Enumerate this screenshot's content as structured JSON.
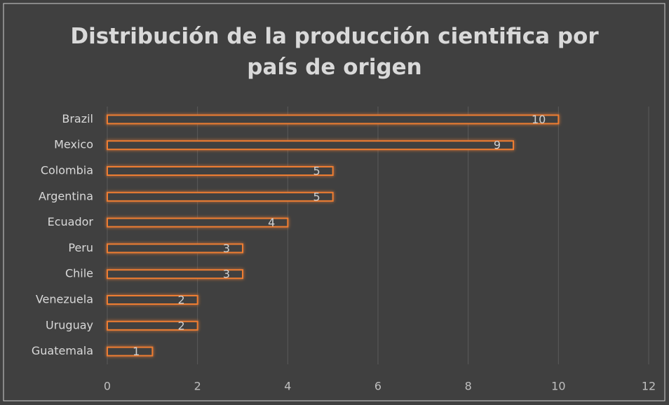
{
  "chart_data": {
    "type": "bar",
    "orientation": "horizontal",
    "title": "Distribución de la producción cientifica por país de origen",
    "categories": [
      "Brazil",
      "Mexico",
      "Colombia",
      "Argentina",
      "Ecuador",
      "Peru",
      "Chile",
      "Venezuela",
      "Uruguay",
      "Guatemala"
    ],
    "values": [
      10,
      9,
      5,
      5,
      4,
      3,
      3,
      2,
      2,
      1
    ],
    "color": "#ed7d31",
    "xlim": [
      0,
      12
    ],
    "xticks": [
      0,
      2,
      4,
      6,
      8,
      10,
      12
    ],
    "grid": true
  }
}
